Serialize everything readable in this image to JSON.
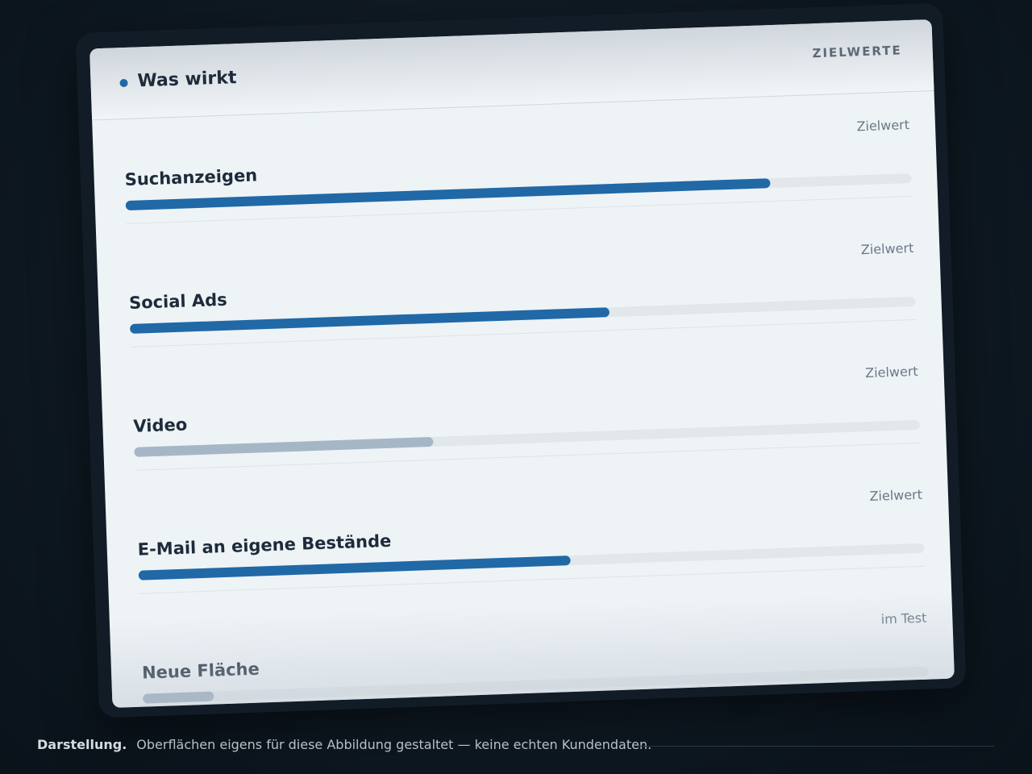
{
  "header": {
    "title": "Was wirkt",
    "tag": "ZIELWERTE"
  },
  "scale": [
    0,
    100
  ],
  "rows": [
    {
      "label": "Suchanzeigen",
      "status": "Zielwert",
      "value": 82,
      "color": "#2168a6"
    },
    {
      "label": "Social Ads",
      "status": "Zielwert",
      "value": 61,
      "color": "#2168a6"
    },
    {
      "label": "Video",
      "status": "Zielwert",
      "value": 38,
      "color": "#a5b7c7"
    },
    {
      "label": "E-Mail an eigene Bestände",
      "status": "Zielwert",
      "value": 55,
      "color": "#2168a6"
    },
    {
      "label": "Neue Fläche",
      "status": "im Test",
      "value": 9,
      "color": "#8fa3b5"
    }
  ],
  "footer": {
    "lead": "Darstellung.",
    "text": "Oberflächen eigens für diese Abbildung gestaltet — keine echten Kundendaten."
  }
}
